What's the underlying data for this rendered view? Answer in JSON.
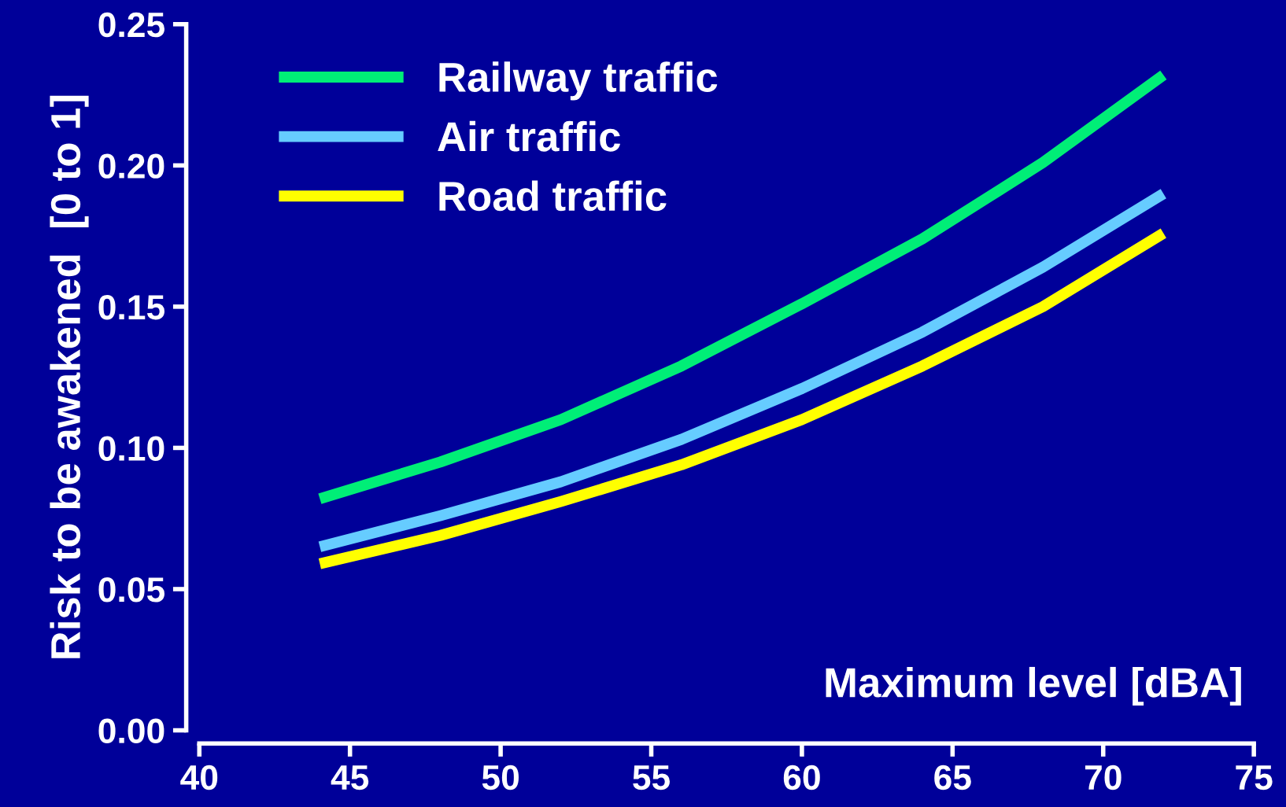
{
  "chart_data": {
    "type": "line",
    "xlabel": "Maximum level [dBA]",
    "ylabel": "Risk to be awakened  [0 to 1]",
    "x": [
      44,
      48,
      52,
      56,
      60,
      64,
      68,
      72
    ],
    "series": [
      {
        "name": "Railway traffic",
        "color": "#00ee77",
        "values": [
          0.082,
          0.095,
          0.11,
          0.129,
          0.151,
          0.174,
          0.201,
          0.232
        ]
      },
      {
        "name": "Air traffic",
        "color": "#66ccff",
        "values": [
          0.065,
          0.076,
          0.088,
          0.103,
          0.121,
          0.141,
          0.164,
          0.19
        ]
      },
      {
        "name": "Road traffic",
        "color": "#ffff00",
        "values": [
          0.059,
          0.069,
          0.081,
          0.094,
          0.11,
          0.129,
          0.15,
          0.176
        ]
      }
    ],
    "xlim": [
      40,
      75
    ],
    "xticks": [
      40,
      45,
      50,
      55,
      60,
      65,
      70,
      75
    ],
    "ylim": [
      0,
      0.25
    ],
    "yticks": [
      {
        "value": 0,
        "label": "0.00"
      },
      {
        "value": 0.05,
        "label": "0.05"
      },
      {
        "value": 0.1,
        "label": "0.10"
      },
      {
        "value": 0.15,
        "label": "0.15"
      },
      {
        "value": 0.2,
        "label": "0.20"
      },
      {
        "value": 0.25,
        "label": "0.25"
      }
    ],
    "grid": false,
    "legend": "top left",
    "marker": "none",
    "line_style": "solid"
  }
}
